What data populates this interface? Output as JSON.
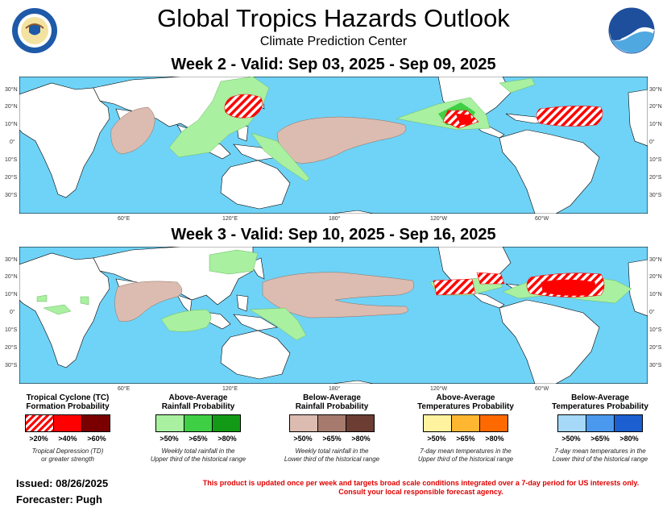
{
  "header": {
    "title": "Global Tropics Hazards Outlook",
    "subtitle": "Climate Prediction Center"
  },
  "week2": {
    "label": "Week 2 - Valid: Sep 03, 2025 - Sep 09, 2025"
  },
  "week3": {
    "label": "Week 3 - Valid: Sep 10, 2025 - Sep 16, 2025"
  },
  "axes": {
    "lat_labels": [
      "30°N",
      "20°N",
      "10°N",
      "0°",
      "10°S",
      "20°S",
      "30°S"
    ],
    "lon_labels": [
      "60°E",
      "120°E",
      "180°",
      "120°W",
      "60°W"
    ]
  },
  "logos": {
    "left": "department-of-commerce-seal",
    "right": "noaa-logo"
  },
  "colors": {
    "ocean": "#6fd3f7",
    "land": "#ffffff",
    "tc20": "#ff0000",
    "tc40": "#ff0000",
    "tc60": "#7a0000",
    "wet50": "#a9f0a0",
    "wet65": "#3fcf45",
    "wet80": "#129a16",
    "dry50": "#dcbcb0",
    "dry65": "#a67b6e",
    "dry80": "#6b3d33",
    "warm50": "#fff3a0",
    "warm65": "#ffb732",
    "warm80": "#ff6a00",
    "cold50": "#a6d8f7",
    "cold65": "#4a99ee",
    "cold80": "#1b5fd0"
  },
  "legend": {
    "tc": {
      "title1": "Tropical Cyclone (TC)",
      "title2": "Formation Probability",
      "labels": [
        ">20%",
        ">40%",
        ">60%"
      ],
      "note1": "Tropical Depression (TD)",
      "note2": "or greater strength"
    },
    "wet": {
      "title1": "Above-Average",
      "title2": "Rainfall Probability",
      "labels": [
        ">50%",
        ">65%",
        ">80%"
      ],
      "note1": "Weekly total rainfall in the",
      "note2": "Upper third of the historical range"
    },
    "dry": {
      "title1": "Below-Average",
      "title2": "Rainfall Probability",
      "labels": [
        ">50%",
        ">65%",
        ">80%"
      ],
      "note1": "Weekly total rainfall in the",
      "note2": "Lower third of the historical range"
    },
    "warm": {
      "title1": "Above-Average",
      "title2": "Temperatures Probability",
      "labels": [
        ">50%",
        ">65%",
        ">80%"
      ],
      "note1": "7-day mean temperatures in the",
      "note2": "Upper third of the historical range"
    },
    "cold": {
      "title1": "Below-Average",
      "title2": "Temperatures Probability",
      "labels": [
        ">50%",
        ">65%",
        ">80%"
      ],
      "note1": "7-day mean temperatures in the",
      "note2": "Lower third of the historical range"
    }
  },
  "footer": {
    "issued": "Issued: 08/26/2025",
    "forecaster": "Forecaster: Pugh",
    "disclaimer1": "This product is updated once per week and targets broad scale conditions integrated over a 7-day period for US interests only.",
    "disclaimer2": "Consult your local responsible forecast agency."
  }
}
